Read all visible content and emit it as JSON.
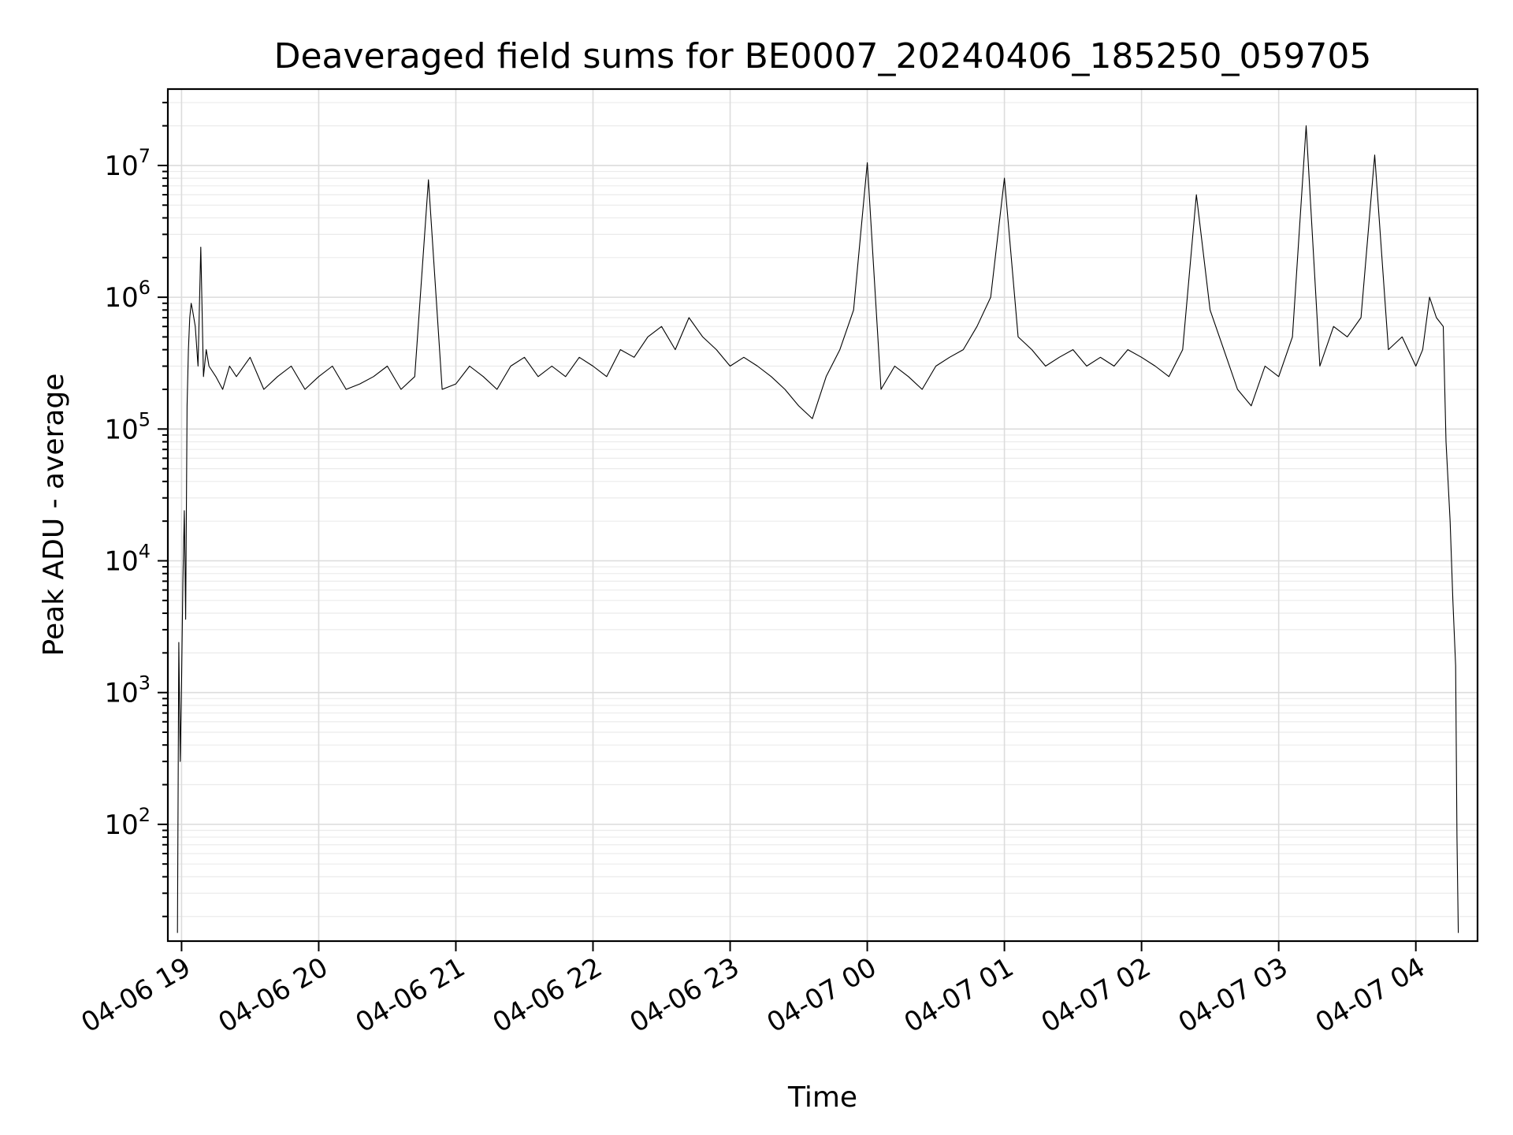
{
  "chart_data": {
    "type": "line",
    "title": "Deaveraged field sums for BE0007_20240406_185250_059705",
    "xlabel": "Time",
    "ylabel": "Peak ADU - average",
    "yscale": "log",
    "ylim": [
      13,
      38000000
    ],
    "xlim_hours": [
      18.9,
      28.45
    ],
    "grid": true,
    "x_tick_labels": [
      "04-06 19",
      "04-06 20",
      "04-06 21",
      "04-06 22",
      "04-06 23",
      "04-07 00",
      "04-07 01",
      "04-07 02",
      "04-07 03",
      "04-07 04"
    ],
    "y_ticks": [
      {
        "base": "10",
        "exp": "2",
        "value": 100
      },
      {
        "base": "10",
        "exp": "3",
        "value": 1000
      },
      {
        "base": "10",
        "exp": "4",
        "value": 10000
      },
      {
        "base": "10",
        "exp": "5",
        "value": 100000
      },
      {
        "base": "10",
        "exp": "6",
        "value": 1000000
      },
      {
        "base": "10",
        "exp": "7",
        "value": 10000000
      }
    ],
    "series": [
      {
        "color": "#000000",
        "x_hours": [
          18.97,
          18.98,
          18.99,
          19.0,
          19.01,
          19.02,
          19.03,
          19.04,
          19.05,
          19.06,
          19.07,
          19.08,
          19.1,
          19.12,
          19.14,
          19.16,
          19.18,
          19.2,
          19.25,
          19.3,
          19.35,
          19.4,
          19.5,
          19.6,
          19.7,
          19.8,
          19.9,
          20.0,
          20.1,
          20.2,
          20.3,
          20.4,
          20.5,
          20.6,
          20.7,
          20.8,
          20.9,
          21.0,
          21.1,
          21.2,
          21.3,
          21.4,
          21.5,
          21.6,
          21.7,
          21.8,
          21.9,
          22.0,
          22.1,
          22.2,
          22.3,
          22.4,
          22.5,
          22.6,
          22.7,
          22.8,
          22.9,
          23.0,
          23.1,
          23.2,
          23.3,
          23.4,
          23.5,
          23.6,
          23.7,
          23.8,
          23.9,
          24.0,
          24.1,
          24.2,
          24.3,
          24.4,
          24.5,
          24.6,
          24.7,
          24.8,
          24.9,
          25.0,
          25.1,
          25.2,
          25.3,
          25.4,
          25.5,
          25.6,
          25.7,
          25.8,
          25.9,
          26.0,
          26.1,
          26.2,
          26.3,
          26.4,
          26.5,
          26.6,
          26.7,
          26.8,
          26.9,
          27.0,
          27.1,
          27.2,
          27.3,
          27.4,
          27.5,
          27.6,
          27.7,
          27.8,
          27.9,
          28.0,
          28.05,
          28.1,
          28.15,
          28.2,
          28.22,
          28.25,
          28.27,
          28.29,
          28.3,
          28.31
        ],
        "y_values": [
          15,
          2400,
          300,
          1200,
          7000,
          24000,
          3600,
          150000,
          400000,
          700000,
          900000,
          800000,
          600000,
          300000,
          2400000,
          250000,
          400000,
          300000,
          250000,
          200000,
          300000,
          250000,
          350000,
          200000,
          250000,
          300000,
          200000,
          250000,
          300000,
          200000,
          220000,
          250000,
          300000,
          200000,
          250000,
          7800000,
          200000,
          220000,
          300000,
          250000,
          200000,
          300000,
          350000,
          250000,
          300000,
          250000,
          350000,
          300000,
          250000,
          400000,
          350000,
          500000,
          600000,
          400000,
          700000,
          500000,
          400000,
          300000,
          350000,
          300000,
          250000,
          200000,
          150000,
          120000,
          250000,
          400000,
          800000,
          10500000,
          200000,
          300000,
          250000,
          200000,
          300000,
          350000,
          400000,
          600000,
          1000000,
          8000000,
          500000,
          400000,
          300000,
          350000,
          400000,
          300000,
          350000,
          300000,
          400000,
          350000,
          300000,
          250000,
          400000,
          6000000,
          800000,
          400000,
          200000,
          150000,
          300000,
          250000,
          500000,
          20000000,
          300000,
          600000,
          500000,
          700000,
          12000000,
          400000,
          500000,
          300000,
          400000,
          1000000,
          700000,
          600000,
          80000,
          20000,
          5000,
          1600,
          80,
          15
        ]
      }
    ]
  }
}
